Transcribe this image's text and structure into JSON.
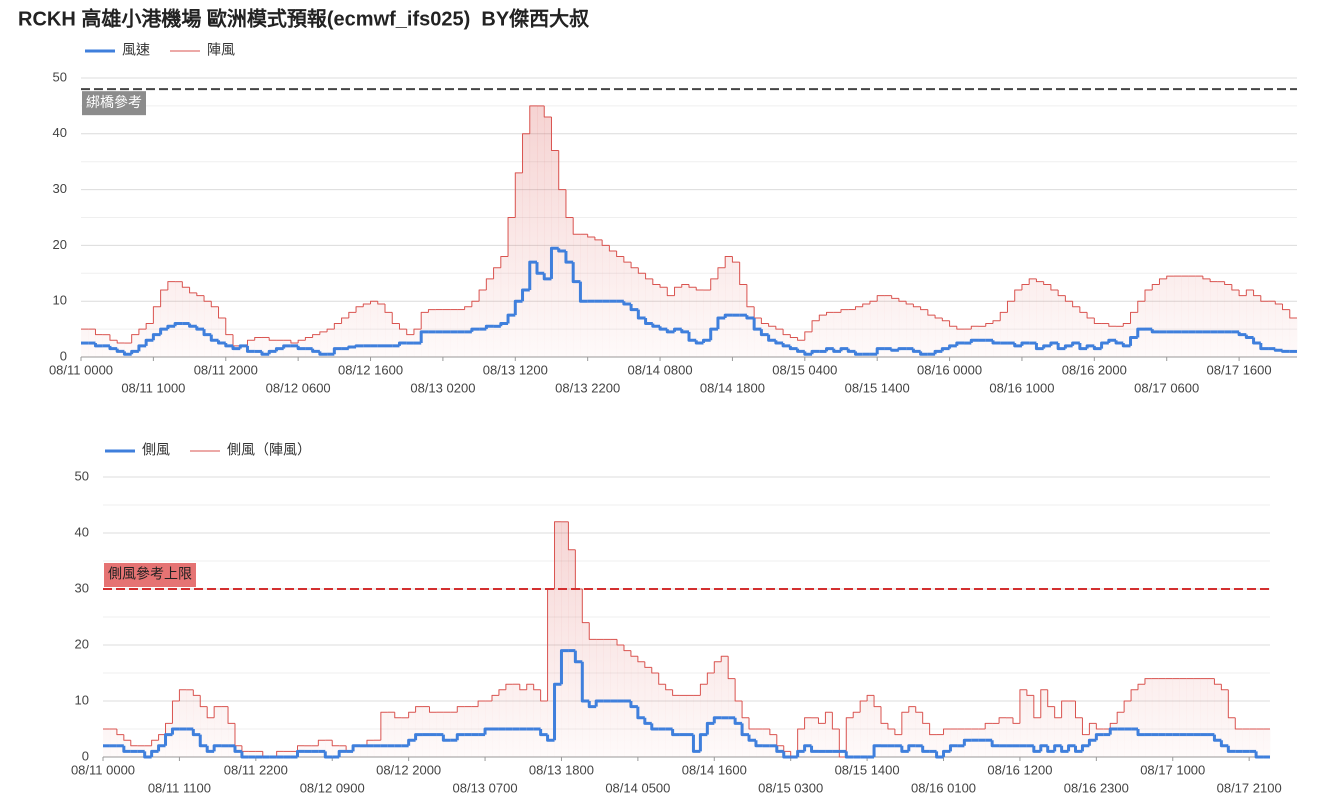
{
  "chart_data": [
    {
      "type": "step-line",
      "title": "RCKH 高雄小港機場 歐洲模式預報(ecmwf_ifs025)  BY傑西大叔",
      "categories": [
        "08/11 0000",
        null,
        null,
        null,
        null,
        null,
        null,
        null,
        null,
        null,
        "08/11 1000",
        null,
        null,
        null,
        null,
        null,
        null,
        null,
        null,
        null,
        "08/11 2000",
        null,
        null,
        null,
        null,
        null,
        null,
        null,
        null,
        null,
        "08/12 0600",
        null,
        null,
        null,
        null,
        null,
        null,
        null,
        null,
        null,
        "08/12 1600",
        null,
        null,
        null,
        null,
        null,
        null,
        null,
        null,
        null,
        "08/13 0200",
        null,
        null,
        null,
        null,
        null,
        null,
        null,
        null,
        null,
        "08/13 1200",
        null,
        null,
        null,
        null,
        null,
        null,
        null,
        null,
        null,
        "08/13 2200",
        null,
        null,
        null,
        null,
        null,
        null,
        null,
        null,
        null,
        "08/14 0800",
        null,
        null,
        null,
        null,
        null,
        null,
        null,
        null,
        null,
        "08/14 1800",
        null,
        null,
        null,
        null,
        null,
        null,
        null,
        null,
        null,
        "08/15 0400",
        null,
        null,
        null,
        null,
        null,
        null,
        null,
        null,
        null,
        "08/15 1400",
        null,
        null,
        null,
        null,
        null,
        null,
        null,
        null,
        null,
        "08/16 0000",
        null,
        null,
        null,
        null,
        null,
        null,
        null,
        null,
        null,
        "08/16 1000",
        null,
        null,
        null,
        null,
        null,
        null,
        null,
        null,
        null,
        "08/16 2000",
        null,
        null,
        null,
        null,
        null,
        null,
        null,
        null,
        null,
        "08/17 0600",
        null,
        null,
        null,
        null,
        null,
        null,
        null,
        null,
        null,
        "08/17 1600",
        null,
        null,
        null,
        null,
        null,
        null,
        null
      ],
      "series": [
        {
          "name": "風速",
          "color": "#3f7fdc",
          "area": false,
          "values": [
            2.5,
            2.5,
            2,
            2,
            1.5,
            1,
            0.5,
            1,
            2,
            3,
            4,
            5,
            5.5,
            6,
            6,
            5.5,
            5,
            4,
            3,
            2.5,
            2,
            1.5,
            2,
            1,
            1,
            0.5,
            1,
            1.5,
            2,
            2,
            1.5,
            1.5,
            1,
            0.5,
            0.5,
            1.5,
            1.5,
            1.8,
            2,
            2,
            2,
            2,
            2,
            2,
            2.5,
            2.5,
            2.5,
            4.5,
            4.5,
            4.5,
            4.5,
            4.5,
            4.5,
            4.5,
            5,
            5,
            5.5,
            5.5,
            6,
            7.5,
            10,
            12,
            17,
            15,
            14,
            19.5,
            19,
            17,
            13.5,
            10,
            10,
            10,
            10,
            10,
            10,
            9.5,
            8.5,
            7,
            6,
            5.5,
            5,
            4.5,
            5,
            4.5,
            3,
            2.5,
            3,
            5,
            7,
            7.5,
            7.5,
            7.5,
            7,
            5,
            4,
            3,
            2.5,
            2,
            1.5,
            1,
            0.5,
            1,
            1,
            1.5,
            1,
            1.5,
            1,
            0.5,
            0.5,
            0.5,
            1.5,
            1.5,
            1.2,
            1.5,
            1.5,
            1,
            0.5,
            0.5,
            1,
            1.5,
            2,
            2.5,
            2.5,
            3,
            3,
            3,
            2.5,
            2.5,
            2.5,
            2,
            2.5,
            2.5,
            1.5,
            2,
            2.5,
            1.5,
            2,
            2.5,
            1.5,
            2,
            1.5,
            2.5,
            3,
            2.5,
            2,
            3.5,
            5,
            5,
            4.5,
            4.5,
            4.5,
            4.5,
            4.5,
            4.5,
            4.5,
            4.5,
            4.5,
            4.5,
            4.5,
            4.5,
            4,
            3.5,
            2.5,
            1.5,
            1.5,
            1.2,
            1,
            1
          ]
        },
        {
          "name": "陣風",
          "color": "#d9534f",
          "area": true,
          "values": [
            5,
            5,
            4,
            4,
            3,
            2.5,
            2.5,
            4,
            5,
            6,
            9,
            12,
            13.5,
            13.5,
            12.5,
            11.5,
            11,
            10,
            9,
            7,
            4,
            2,
            2,
            3,
            3.5,
            3.5,
            3,
            3,
            3,
            2.5,
            3,
            3.5,
            4,
            4.5,
            5,
            6,
            7,
            8,
            9,
            9.5,
            10,
            9.5,
            8,
            6,
            5,
            4,
            5,
            8,
            8.5,
            8.5,
            8.5,
            8.5,
            8.5,
            9,
            10,
            12,
            14,
            16,
            18,
            25,
            33,
            40,
            45,
            45,
            43,
            37,
            30,
            25,
            22,
            22,
            21.5,
            21,
            20,
            19,
            18,
            17,
            16,
            15,
            14,
            13,
            12.5,
            11,
            12.5,
            13,
            12.5,
            12,
            12,
            14,
            16,
            18,
            17,
            13,
            9,
            7,
            6,
            5.5,
            5,
            4,
            3.5,
            3,
            4.5,
            6.5,
            7.5,
            8,
            8,
            8.5,
            8.5,
            9,
            9.5,
            10,
            11,
            11,
            10.5,
            10,
            9.5,
            9,
            8.5,
            7.5,
            7,
            6.5,
            5.5,
            5,
            5,
            5.5,
            5.5,
            6,
            6.5,
            8,
            10,
            12,
            13,
            14,
            13.5,
            13,
            12,
            11,
            10,
            9,
            8,
            7,
            6,
            6,
            5.5,
            5.5,
            6,
            8,
            10,
            12,
            13,
            14,
            14.5,
            14.5,
            14.5,
            14.5,
            14.5,
            14,
            13.5,
            13.5,
            13,
            12,
            11,
            12,
            11,
            10,
            10,
            9.5,
            8.5,
            7
          ]
        }
      ],
      "ylim": [
        0,
        50
      ],
      "yticks": [
        0,
        10,
        20,
        30,
        40,
        50
      ],
      "minor_yticks": [
        5,
        15,
        25,
        35,
        45
      ],
      "grid": true,
      "reference_lines": [
        {
          "value": 48,
          "label": "綁橋參考",
          "color": "#444444",
          "label_color": "#8c8c8c",
          "label_text_color": "#ffffff"
        }
      ]
    },
    {
      "type": "step-line",
      "categories": [
        "08/11 0000",
        null,
        null,
        null,
        null,
        null,
        null,
        null,
        null,
        null,
        null,
        "08/11 1100",
        null,
        null,
        null,
        null,
        null,
        null,
        null,
        null,
        null,
        null,
        "08/11 2200",
        null,
        null,
        null,
        null,
        null,
        null,
        null,
        null,
        null,
        null,
        "08/12 0900",
        null,
        null,
        null,
        null,
        null,
        null,
        null,
        null,
        null,
        null,
        "08/12 2000",
        null,
        null,
        null,
        null,
        null,
        null,
        null,
        null,
        null,
        null,
        "08/13 0700",
        null,
        null,
        null,
        null,
        null,
        null,
        null,
        null,
        null,
        null,
        "08/13 1800",
        null,
        null,
        null,
        null,
        null,
        null,
        null,
        null,
        null,
        null,
        "08/14 0500",
        null,
        null,
        null,
        null,
        null,
        null,
        null,
        null,
        null,
        null,
        "08/14 1600",
        null,
        null,
        null,
        null,
        null,
        null,
        null,
        null,
        null,
        null,
        "08/15 0300",
        null,
        null,
        null,
        null,
        null,
        null,
        null,
        null,
        null,
        null,
        "08/15 1400",
        null,
        null,
        null,
        null,
        null,
        null,
        null,
        null,
        null,
        null,
        "08/16 0100",
        null,
        null,
        null,
        null,
        null,
        null,
        null,
        null,
        null,
        null,
        "08/16 1200",
        null,
        null,
        null,
        null,
        null,
        null,
        null,
        null,
        null,
        null,
        "08/16 2300",
        null,
        null,
        null,
        null,
        null,
        null,
        null,
        null,
        null,
        null,
        "08/17 1000",
        null,
        null,
        null,
        null,
        null,
        null,
        null,
        null,
        null,
        null,
        "08/17 2100",
        null,
        null
      ],
      "series": [
        {
          "name": "側風",
          "color": "#3f7fdc",
          "area": false,
          "values": [
            2,
            2,
            2,
            1,
            1,
            1,
            0,
            1,
            2,
            4,
            5,
            5,
            5,
            4,
            2,
            1,
            2,
            2,
            2,
            1,
            0,
            0,
            0,
            0,
            0,
            0,
            0,
            0,
            1,
            1,
            1,
            1,
            0,
            0,
            1,
            1,
            2,
            2,
            2,
            2,
            2,
            2,
            2,
            2,
            3,
            4,
            4,
            4,
            4,
            3,
            3,
            4,
            4,
            4,
            4,
            5,
            5,
            5,
            5,
            5,
            5,
            5,
            5,
            4,
            3,
            13,
            19,
            19,
            17,
            10,
            9,
            10,
            10,
            10,
            10,
            10,
            9,
            7,
            6,
            5,
            5,
            5,
            4,
            4,
            4,
            1,
            4,
            6,
            7,
            7,
            7,
            6,
            4,
            3,
            2,
            2,
            2,
            1,
            0,
            0,
            1,
            2,
            1,
            1,
            1,
            1,
            1,
            0,
            0,
            0,
            0,
            2,
            2,
            2,
            2,
            1,
            2,
            2,
            1,
            1,
            0,
            1,
            2,
            2,
            3,
            3,
            3,
            3,
            2,
            2,
            2,
            2,
            2,
            2,
            1,
            2,
            1,
            2,
            1,
            2,
            1,
            2,
            3,
            4,
            4,
            5,
            5,
            5,
            5,
            4,
            4,
            4,
            4,
            4,
            4,
            4,
            4,
            4,
            4,
            4,
            3,
            2,
            1,
            1,
            1,
            1,
            0,
            0
          ]
        },
        {
          "name": "側風（陣風）",
          "color": "#d9534f",
          "area": true,
          "values": [
            5,
            5,
            4,
            3,
            2,
            2,
            2,
            3,
            4,
            6,
            10,
            12,
            12,
            11,
            9,
            7,
            9,
            9,
            6,
            2,
            1,
            1,
            1,
            0,
            0,
            1,
            1,
            1,
            2,
            2,
            2,
            3,
            3,
            2,
            2,
            1,
            2,
            2,
            3,
            3,
            8,
            8,
            7,
            7,
            8,
            9,
            9,
            8,
            8,
            8,
            8,
            9,
            9,
            9,
            10,
            10,
            11,
            12,
            13,
            13,
            12,
            13,
            12,
            10,
            30,
            42,
            42,
            37,
            30,
            24,
            21,
            21,
            21,
            21,
            20,
            19,
            18,
            17,
            16,
            15,
            13,
            12,
            11,
            11,
            11,
            11,
            13,
            15,
            17,
            18,
            14,
            10,
            7,
            5,
            5,
            5,
            4,
            2,
            1,
            0,
            5,
            7,
            7,
            6,
            8,
            5,
            0,
            7,
            8,
            10,
            11,
            9,
            6,
            5,
            4,
            8,
            9,
            8,
            6,
            4,
            4,
            5,
            5,
            5,
            5,
            5,
            5,
            6,
            6,
            7,
            7,
            6,
            12,
            11,
            7,
            12,
            9,
            7,
            10,
            10,
            7,
            4,
            6,
            5,
            5,
            6,
            8,
            10,
            12,
            13,
            14,
            14,
            14,
            14,
            14,
            14,
            14,
            14,
            14,
            14,
            13,
            12,
            7,
            5,
            5,
            5,
            5,
            5
          ]
        }
      ],
      "ylim": [
        0,
        50
      ],
      "yticks": [
        0,
        10,
        20,
        30,
        40,
        50
      ],
      "minor_yticks": [
        5,
        15,
        25,
        35,
        45
      ],
      "grid": true,
      "reference_lines": [
        {
          "value": 30,
          "label": "側風參考上限",
          "color": "#d32f2f",
          "label_color": "#e57373",
          "label_text_color": "#222222"
        }
      ]
    }
  ]
}
